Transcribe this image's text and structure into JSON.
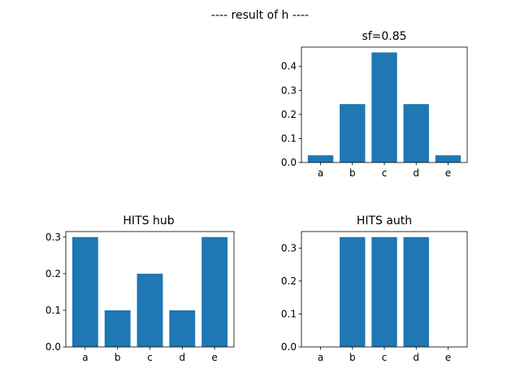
{
  "figure": {
    "suptitle": "---- result of h ----"
  },
  "chart_data": [
    {
      "type": "bar",
      "title": "sf=0.85",
      "categories": [
        "a",
        "b",
        "c",
        "d",
        "e"
      ],
      "values": [
        0.03,
        0.243,
        0.458,
        0.243,
        0.03
      ],
      "ylim": [
        0,
        0.48
      ],
      "yticks": [
        0.0,
        0.1,
        0.2,
        0.3,
        0.4
      ],
      "ytick_labels": [
        "0.0",
        "0.1",
        "0.2",
        "0.3",
        "0.4"
      ],
      "bar_color": "#1f77b4",
      "grid": false
    },
    {
      "type": "bar",
      "title": "HITS hub",
      "categories": [
        "a",
        "b",
        "c",
        "d",
        "e"
      ],
      "values": [
        0.3,
        0.1,
        0.2,
        0.1,
        0.3
      ],
      "ylim": [
        0,
        0.315
      ],
      "yticks": [
        0.0,
        0.1,
        0.2,
        0.3
      ],
      "ytick_labels": [
        "0.0",
        "0.1",
        "0.2",
        "0.3"
      ],
      "bar_color": "#1f77b4",
      "grid": false
    },
    {
      "type": "bar",
      "title": "HITS auth",
      "categories": [
        "a",
        "b",
        "c",
        "d",
        "e"
      ],
      "values": [
        0.0,
        0.3333,
        0.3333,
        0.3333,
        0.0
      ],
      "ylim": [
        0,
        0.35
      ],
      "yticks": [
        0.0,
        0.1,
        0.2,
        0.3
      ],
      "ytick_labels": [
        "0.0",
        "0.1",
        "0.2",
        "0.3"
      ],
      "bar_color": "#1f77b4",
      "grid": false
    }
  ]
}
